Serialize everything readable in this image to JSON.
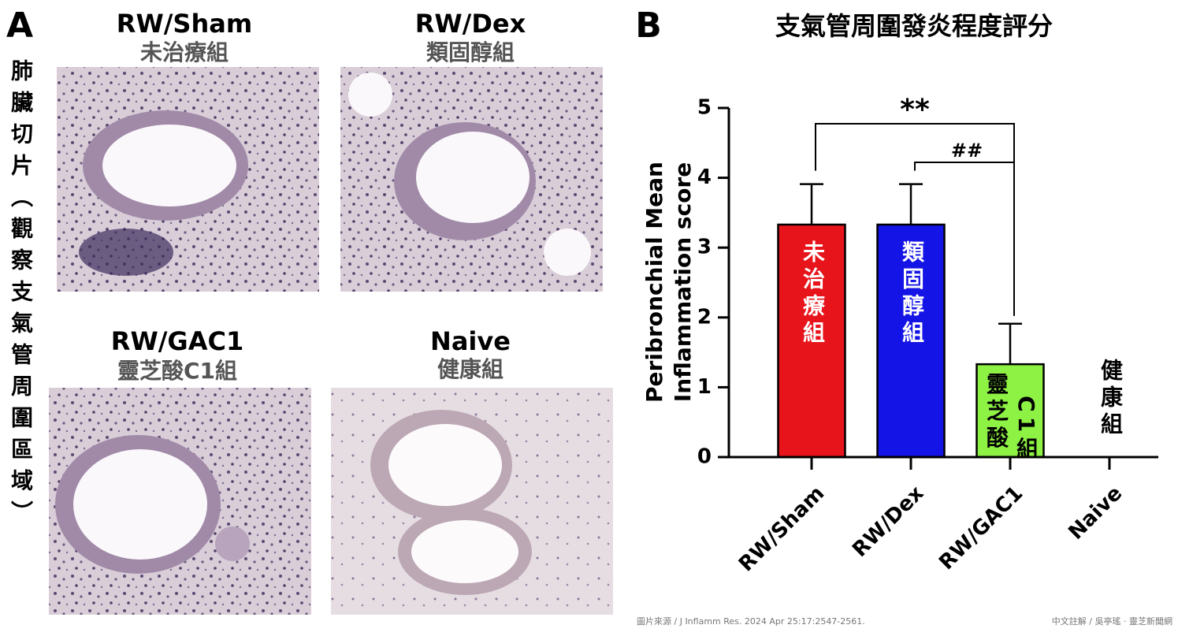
{
  "panel_a": {
    "label": "A",
    "side_label": "肺臟切片（觀察支氣管周圍區域）",
    "images": [
      {
        "title": "RW/Sham",
        "subtitle": "未治療組"
      },
      {
        "title": "RW/Dex",
        "subtitle": "類固醇組"
      },
      {
        "title": "RW/GAC1",
        "subtitle": "靈芝酸C1組"
      },
      {
        "title": "Naive",
        "subtitle": "健康組"
      }
    ]
  },
  "chart_data": {
    "type": "bar",
    "panel_label": "B",
    "title": "支氣管周圍發炎程度評分",
    "ylabel": [
      "Peribronchial Mean",
      "Inflammation score"
    ],
    "categories": [
      "RW/Sham",
      "RW/Dex",
      "RW/GAC1",
      "Naive"
    ],
    "values": [
      3.33,
      3.33,
      1.33,
      0
    ],
    "errors": [
      0.58,
      0.58,
      0.58,
      0
    ],
    "colors": [
      "#e8141b",
      "#1414e6",
      "#8ef244",
      "#000000"
    ],
    "bar_labels": [
      [
        "未治療組"
      ],
      [
        "類固醇組"
      ],
      [
        "靈芝酸",
        "C1組"
      ],
      [
        "健康組"
      ]
    ],
    "significance": [
      {
        "from": 0,
        "to": 2,
        "label": "**"
      },
      {
        "from": 1,
        "to": 2,
        "label": "##"
      }
    ],
    "ylim": [
      0,
      5
    ],
    "yticks": [
      0,
      1,
      2,
      3,
      4,
      5
    ]
  },
  "footer": {
    "source": "圖片來源 / J Inflamm Res. 2024 Apr 25:17:2547-2561.",
    "credit": "中文註解 / 吳亭瑤 · 靈芝新聞網"
  }
}
